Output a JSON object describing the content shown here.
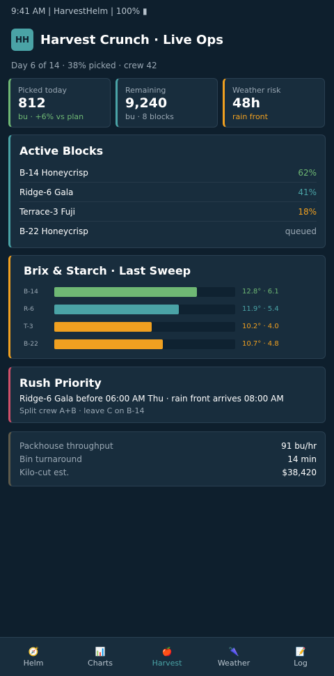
{
  "status_bar": "9:41 AM | HarvestHelm | 100% ▮",
  "header": {
    "logo": "HH",
    "title": "Harvest Crunch · Live Ops"
  },
  "subtitle": "Day 6 of 14 · 38% picked · crew 42",
  "stats": [
    {
      "label": "Picked today",
      "value": "812",
      "sub": "bu · +6% vs plan",
      "accent": "#6fb874",
      "sub_color": "#6fb874"
    },
    {
      "label": "Remaining",
      "value": "9,240",
      "sub": "bu · 8 blocks",
      "accent": "#4aa3a6",
      "sub_color": "#9aa8b4"
    },
    {
      "label": "Weather risk",
      "value": "48h",
      "sub": "rain front",
      "accent": "#f0a020",
      "sub_color": "#f0a020"
    }
  ],
  "active_blocks": {
    "title": "Active Blocks",
    "rows": [
      {
        "name": "B-14 Honeycrisp",
        "status": "62%",
        "color": "#6fb874"
      },
      {
        "name": "Ridge-6 Gala",
        "status": "41%",
        "color": "#4aa3a6"
      },
      {
        "name": "Terrace-3 Fuji",
        "status": "18%",
        "color": "#f0a020"
      },
      {
        "name": "B-22 Honeycrisp",
        "status": "queued",
        "color": "#9aa8b4"
      }
    ]
  },
  "brix": {
    "title": "Brix & Starch · Last Sweep",
    "rows": [
      {
        "code": "B-14",
        "fill": 0.79,
        "label": "12.8° · 6.1",
        "color": "#6fb874"
      },
      {
        "code": "R-6",
        "fill": 0.69,
        "label": "11.9° · 5.4",
        "color": "#4aa3a6"
      },
      {
        "code": "T-3",
        "fill": 0.54,
        "label": "10.2° · 4.0",
        "color": "#f0a020"
      },
      {
        "code": "B-22",
        "fill": 0.6,
        "label": "10.7° · 4.8",
        "color": "#f0a020"
      }
    ]
  },
  "rush": {
    "title": "Rush Priority",
    "main": "Ridge-6 Gala before 06:00 AM Thu · rain front arrives 08:00 AM",
    "sub": "Split crew A+B · leave C on B-14",
    "accent": "#d0506a"
  },
  "metrics": [
    {
      "label": "Packhouse throughput",
      "value": "91 bu/hr"
    },
    {
      "label": "Bin turnaround",
      "value": "14 min"
    },
    {
      "label": "Kilo-cut est.",
      "value": "$38,420"
    }
  ],
  "nav": [
    {
      "icon": "🧭",
      "label": "Helm",
      "icon_name": "compass-icon"
    },
    {
      "icon": "📊",
      "label": "Charts",
      "icon_name": "bar-chart-icon"
    },
    {
      "icon": "🍎",
      "label": "Harvest",
      "icon_name": "apple-icon",
      "active": true
    },
    {
      "icon": "🌂",
      "label": "Weather",
      "icon_name": "umbrella-icon"
    },
    {
      "icon": "📝",
      "label": "Log",
      "icon_name": "memo-icon"
    }
  ]
}
